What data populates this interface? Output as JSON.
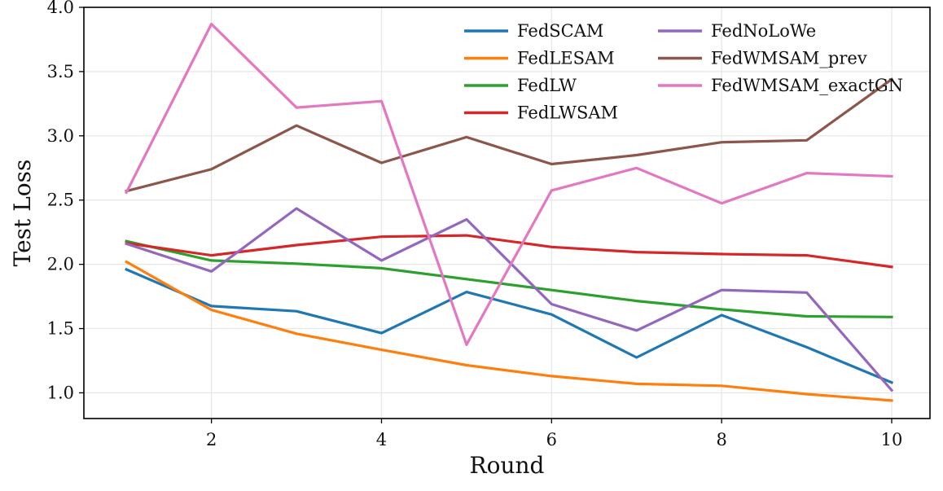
{
  "chart_data": {
    "type": "line",
    "title": "",
    "xlabel": "Round",
    "ylabel": "Test Loss",
    "x": [
      1,
      2,
      3,
      4,
      5,
      6,
      7,
      8,
      9,
      10
    ],
    "xlim": [
      0.5,
      10.45
    ],
    "ylim": [
      0.8,
      4.0
    ],
    "xticks": [
      2,
      4,
      6,
      8,
      10
    ],
    "xtick_labels": [
      "2",
      "4",
      "6",
      "8",
      "10"
    ],
    "yticks": [
      1.0,
      1.5,
      2.0,
      2.5,
      3.0,
      3.5,
      4.0
    ],
    "ytick_labels": [
      "1.0",
      "1.5",
      "2.0",
      "2.5",
      "3.0",
      "3.5",
      "4.0"
    ],
    "grid": true,
    "legend_position": "top-right",
    "series": [
      {
        "name": "FedSCAM",
        "color": "#1f77b4",
        "values": [
          1.96,
          1.675,
          1.635,
          1.465,
          1.785,
          1.61,
          1.275,
          1.605,
          1.355,
          1.08
        ]
      },
      {
        "name": "FedLESAM",
        "color": "#ff7f0e",
        "values": [
          2.02,
          1.645,
          1.46,
          1.335,
          1.215,
          1.13,
          1.07,
          1.055,
          0.99,
          0.94
        ]
      },
      {
        "name": "FedLW",
        "color": "#2ca02c",
        "values": [
          2.18,
          2.03,
          2.005,
          1.97,
          1.885,
          1.8,
          1.715,
          1.65,
          1.595,
          1.59
        ]
      },
      {
        "name": "FedLWSAM",
        "color": "#d62728",
        "values": [
          2.165,
          2.07,
          2.15,
          2.215,
          2.225,
          2.135,
          2.095,
          2.08,
          2.07,
          1.98
        ]
      },
      {
        "name": "FedNoLoWe",
        "color": "#9467bd",
        "values": [
          2.16,
          1.945,
          2.435,
          2.03,
          2.35,
          1.69,
          1.485,
          1.8,
          1.78,
          1.02
        ]
      },
      {
        "name": "FedWMSAM_prev",
        "color": "#8c564b",
        "values": [
          2.57,
          2.74,
          3.08,
          2.79,
          2.99,
          2.78,
          2.85,
          2.95,
          2.965,
          3.44
        ]
      },
      {
        "name": "FedWMSAM_exactGN",
        "color": "#e377c2",
        "values": [
          2.56,
          3.87,
          3.22,
          3.27,
          1.375,
          2.575,
          2.75,
          2.475,
          2.71,
          2.685
        ]
      }
    ]
  }
}
